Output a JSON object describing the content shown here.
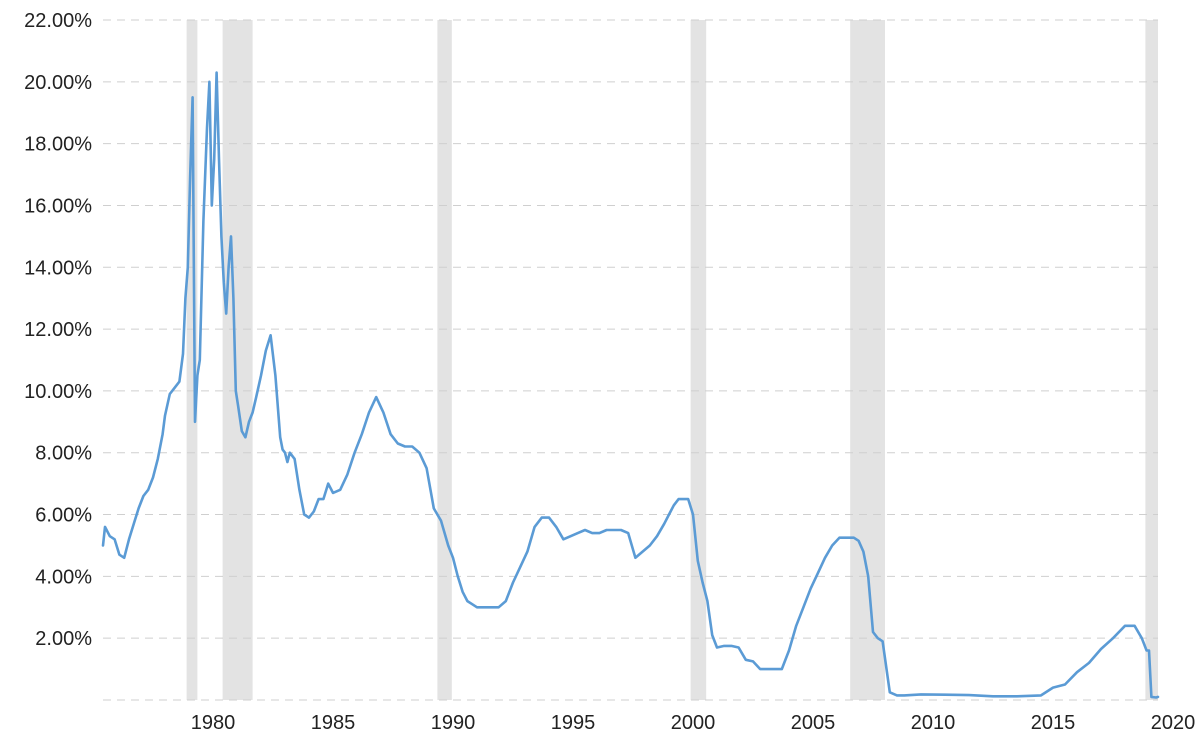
{
  "colors": {
    "line": "#5b9bd5",
    "recession": "#e3e3e3",
    "grid": "#cfcfcf",
    "text": "#222222"
  },
  "chart_data": {
    "type": "line",
    "title": "",
    "xlabel": "",
    "ylabel": "",
    "xlim": [
      1975.4,
      2019.5
    ],
    "ylim": [
      0,
      22
    ],
    "grid": true,
    "y_ticks": [
      {
        "value": 2,
        "label": "2.00%"
      },
      {
        "value": 4,
        "label": "4.00%"
      },
      {
        "value": 6,
        "label": "6.00%"
      },
      {
        "value": 8,
        "label": "8.00%"
      },
      {
        "value": 10,
        "label": "10.00%"
      },
      {
        "value": 12,
        "label": "12.00%"
      },
      {
        "value": 14,
        "label": "14.00%"
      },
      {
        "value": 16,
        "label": "16.00%"
      },
      {
        "value": 18,
        "label": "18.00%"
      },
      {
        "value": 20,
        "label": "20.00%"
      },
      {
        "value": 22,
        "label": "22.00%"
      }
    ],
    "x_ticks": [
      {
        "value": 1980,
        "label": "1980"
      },
      {
        "value": 1985,
        "label": "1985"
      },
      {
        "value": 1990,
        "label": "1990"
      },
      {
        "value": 1995,
        "label": "1995"
      },
      {
        "value": 2000,
        "label": "2000"
      },
      {
        "value": 2005,
        "label": "2005"
      },
      {
        "value": 2010,
        "label": "2010"
      },
      {
        "value": 2015,
        "label": "2015"
      },
      {
        "value": 2020,
        "label": "2020"
      }
    ],
    "recessions": [
      [
        1978.9,
        1979.35
      ],
      [
        1980.4,
        1981.65
      ],
      [
        1989.35,
        1989.95
      ],
      [
        1999.9,
        2000.55
      ],
      [
        2006.55,
        2008.0
      ],
      [
        2018.85,
        2019.5
      ]
    ],
    "series": [
      {
        "x": [
          1975.4,
          1975.5,
          1975.7,
          1975.9,
          1976.1,
          1976.3,
          1976.5,
          1976.7,
          1976.9,
          1977.1,
          1977.3,
          1977.5,
          1977.7,
          1977.9,
          1978.0,
          1978.2,
          1978.4,
          1978.6,
          1978.75,
          1978.85,
          1978.95,
          1979.05,
          1979.15,
          1979.25,
          1979.35,
          1979.45,
          1979.6,
          1979.75,
          1979.85,
          1979.95,
          1980.05,
          1980.15,
          1980.25,
          1980.35,
          1980.45,
          1980.55,
          1980.65,
          1980.75,
          1980.85,
          1980.95,
          1981.05,
          1981.2,
          1981.35,
          1981.5,
          1981.65,
          1981.8,
          1982.0,
          1982.2,
          1982.4,
          1982.6,
          1982.8,
          1982.9,
          1983.0,
          1983.1,
          1983.2,
          1983.4,
          1983.6,
          1983.8,
          1984.0,
          1984.2,
          1984.4,
          1984.6,
          1984.8,
          1985.0,
          1985.3,
          1985.6,
          1985.9,
          1986.2,
          1986.5,
          1986.8,
          1987.1,
          1987.4,
          1987.7,
          1988.0,
          1988.3,
          1988.6,
          1988.9,
          1989.2,
          1989.5,
          1989.8,
          1990.0,
          1990.2,
          1990.4,
          1990.6,
          1990.8,
          1991.0,
          1991.3,
          1991.6,
          1991.9,
          1992.2,
          1992.5,
          1992.8,
          1993.1,
          1993.4,
          1993.7,
          1994.0,
          1994.3,
          1994.6,
          1994.9,
          1995.2,
          1995.5,
          1995.8,
          1996.1,
          1996.4,
          1996.7,
          1997.0,
          1997.3,
          1997.6,
          1997.9,
          1998.2,
          1998.5,
          1998.8,
          1999.0,
          1999.2,
          1999.4,
          1999.6,
          1999.8,
          2000.0,
          2000.2,
          2000.4,
          2000.6,
          2000.8,
          2001.0,
          2001.3,
          2001.6,
          2001.9,
          2002.2,
          2002.5,
          2002.8,
          2003.1,
          2003.4,
          2003.7,
          2004.0,
          2004.3,
          2004.6,
          2004.9,
          2005.2,
          2005.5,
          2005.8,
          2006.1,
          2006.4,
          2006.7,
          2006.9,
          2007.1,
          2007.3,
          2007.5,
          2007.7,
          2007.9,
          2008.2,
          2008.5,
          2008.8,
          2009.5,
          2010.5,
          2011.5,
          2012.5,
          2013.5,
          2014.5,
          2015.0,
          2015.5,
          2016.0,
          2016.5,
          2017.0,
          2017.5,
          2018.0,
          2018.4,
          2018.7,
          2018.9,
          2019.0,
          2019.1,
          2019.3,
          2019.5
        ],
        "values": [
          5.0,
          5.6,
          5.3,
          5.2,
          4.7,
          4.6,
          5.2,
          5.7,
          6.2,
          6.6,
          6.8,
          7.2,
          7.8,
          8.6,
          9.2,
          9.9,
          10.1,
          10.3,
          11.2,
          13.0,
          14.0,
          17.0,
          19.5,
          9.0,
          10.5,
          11.0,
          15.5,
          18.5,
          20.0,
          16.0,
          17.5,
          20.3,
          17.5,
          15.0,
          13.5,
          12.5,
          14.0,
          15.0,
          13.0,
          10.0,
          9.5,
          8.7,
          8.5,
          9.0,
          9.3,
          9.8,
          10.5,
          11.3,
          11.8,
          10.5,
          8.5,
          8.1,
          8.0,
          7.7,
          8.0,
          7.8,
          6.8,
          6.0,
          5.9,
          6.1,
          6.5,
          6.5,
          7.0,
          6.7,
          6.8,
          7.3,
          8.0,
          8.6,
          9.3,
          9.8,
          9.3,
          8.6,
          8.3,
          8.2,
          8.2,
          8.0,
          7.5,
          6.2,
          5.8,
          5.0,
          4.6,
          4.0,
          3.5,
          3.2,
          3.1,
          3.0,
          3.0,
          3.0,
          3.0,
          3.2,
          3.8,
          4.3,
          4.8,
          5.6,
          5.9,
          5.9,
          5.6,
          5.2,
          5.3,
          5.4,
          5.5,
          5.4,
          5.4,
          5.5,
          5.5,
          5.5,
          5.4,
          4.6,
          4.8,
          5.0,
          5.3,
          5.7,
          6.0,
          6.3,
          6.5,
          6.5,
          6.5,
          6.0,
          4.5,
          3.8,
          3.2,
          2.1,
          1.7,
          1.75,
          1.75,
          1.7,
          1.3,
          1.25,
          1.0,
          1.0,
          1.0,
          1.0,
          1.6,
          2.4,
          3.0,
          3.6,
          4.1,
          4.6,
          5.0,
          5.25,
          5.25,
          5.25,
          5.15,
          4.8,
          4.0,
          2.2,
          2.0,
          1.9,
          0.25,
          0.15,
          0.15,
          0.18,
          0.17,
          0.16,
          0.12,
          0.12,
          0.15,
          0.4,
          0.5,
          0.9,
          1.2,
          1.65,
          2.0,
          2.4,
          2.4,
          2.0,
          1.6,
          1.6,
          0.1,
          0.08,
          0.1
        ]
      }
    ]
  }
}
